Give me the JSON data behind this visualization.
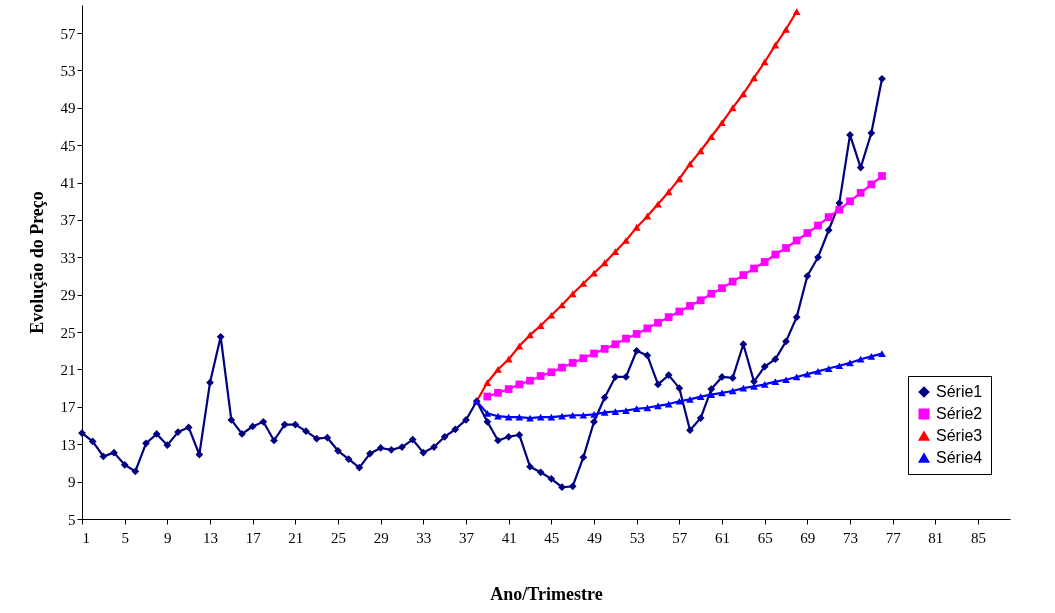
{
  "chart_data": {
    "type": "line",
    "xlabel": "Ano/Trimestre",
    "ylabel": "Evolução do Preço",
    "xlim": [
      1,
      88
    ],
    "xticks": [
      1,
      5,
      9,
      13,
      17,
      21,
      25,
      29,
      33,
      37,
      41,
      45,
      49,
      53,
      57,
      61,
      65,
      69,
      73,
      77,
      81,
      85
    ],
    "ylim": [
      5,
      60
    ],
    "yticks": [
      5,
      9,
      13,
      17,
      21,
      25,
      29,
      33,
      37,
      41,
      45,
      49,
      53,
      57
    ],
    "grid": false,
    "legend": "right",
    "line_style": "solid",
    "series": [
      {
        "name": "Série1",
        "color": "#000080",
        "marker": "diamond",
        "x": [
          1,
          2,
          3,
          4,
          5,
          6,
          7,
          8,
          9,
          10,
          11,
          12,
          13,
          14,
          15,
          16,
          17,
          18,
          19,
          20,
          21,
          22,
          23,
          24,
          25,
          26,
          27,
          28,
          29,
          30,
          31,
          32,
          33,
          34,
          35,
          36,
          37,
          38,
          39,
          40,
          41,
          42,
          43,
          44,
          45,
          46,
          47,
          48,
          49,
          50,
          51,
          52,
          53,
          54,
          55,
          56,
          57,
          58,
          59,
          60,
          61,
          62,
          63,
          64,
          65,
          66,
          67,
          68,
          69,
          70,
          71,
          72,
          73,
          74,
          75,
          76
        ],
        "values": [
          14.2,
          13.3,
          11.7,
          12.1,
          10.8,
          10.1,
          13.1,
          14.1,
          12.9,
          14.3,
          14.8,
          11.9,
          19.6,
          24.5,
          15.6,
          14.1,
          14.9,
          15.4,
          13.4,
          15.1,
          15.1,
          14.4,
          13.6,
          13.7,
          12.3,
          11.4,
          10.5,
          12.0,
          12.6,
          12.4,
          12.7,
          13.5,
          12.1,
          12.7,
          13.8,
          14.6,
          15.6,
          17.6,
          15.4,
          13.4,
          13.8,
          14.0,
          10.6,
          10.0,
          9.3,
          8.4,
          8.5,
          11.6,
          15.4,
          18.0,
          20.2,
          20.2,
          23.0,
          22.5,
          19.4,
          20.4,
          19.0,
          14.5,
          15.8,
          18.9,
          20.2,
          20.1,
          23.7,
          19.7,
          21.3,
          22.1,
          24.0,
          26.6,
          31.0,
          33.0,
          35.9,
          38.8,
          46.1,
          42.6,
          46.3,
          52.1
        ]
      },
      {
        "name": "Série2",
        "color": "#ff00ff",
        "marker": "square",
        "x": [
          39,
          40,
          41,
          42,
          43,
          44,
          45,
          46,
          47,
          48,
          49,
          50,
          51,
          52,
          53,
          54,
          55,
          56,
          57,
          58,
          59,
          60,
          61,
          62,
          63,
          64,
          65,
          66,
          67,
          68,
          69,
          70,
          71,
          72,
          73,
          74,
          75,
          76
        ],
        "values": [
          18.1,
          18.5,
          18.9,
          19.4,
          19.8,
          20.3,
          20.7,
          21.2,
          21.7,
          22.2,
          22.7,
          23.2,
          23.7,
          24.3,
          24.8,
          25.4,
          26.0,
          26.6,
          27.2,
          27.8,
          28.4,
          29.1,
          29.7,
          30.4,
          31.1,
          31.8,
          32.5,
          33.3,
          34.0,
          34.8,
          35.6,
          36.4,
          37.3,
          38.1,
          39.0,
          39.9,
          40.8,
          41.7
        ]
      },
      {
        "name": "Série3",
        "color": "#ff0000",
        "marker": "triangle",
        "x": [
          38,
          39,
          40,
          41,
          42,
          43,
          44,
          45,
          46,
          47,
          48,
          49,
          50,
          51,
          52,
          53,
          54,
          55,
          56,
          57,
          58,
          59,
          60,
          61,
          62,
          63,
          64,
          65,
          66,
          67,
          68
        ],
        "values": [
          17.6,
          19.6,
          21.0,
          22.1,
          23.5,
          24.7,
          25.7,
          26.8,
          27.9,
          29.1,
          30.2,
          31.3,
          32.4,
          33.6,
          34.8,
          36.2,
          37.4,
          38.7,
          40.0,
          41.4,
          43.0,
          44.4,
          45.9,
          47.4,
          49.0,
          50.5,
          52.2,
          53.9,
          55.7,
          57.4,
          59.3
        ]
      },
      {
        "name": "Série4",
        "color": "#0000ff",
        "marker": "triangle",
        "x": [
          38,
          39,
          40,
          41,
          42,
          43,
          44,
          45,
          46,
          47,
          48,
          49,
          50,
          51,
          52,
          53,
          54,
          55,
          56,
          57,
          58,
          59,
          60,
          61,
          62,
          63,
          64,
          65,
          66,
          67,
          68,
          69,
          70,
          71,
          72,
          73,
          74,
          75,
          76
        ],
        "values": [
          17.6,
          16.3,
          16.0,
          15.9,
          15.9,
          15.8,
          15.9,
          15.9,
          16.0,
          16.1,
          16.1,
          16.2,
          16.4,
          16.5,
          16.6,
          16.8,
          16.9,
          17.1,
          17.3,
          17.6,
          17.8,
          18.1,
          18.3,
          18.5,
          18.7,
          19.0,
          19.2,
          19.4,
          19.7,
          19.9,
          20.2,
          20.5,
          20.8,
          21.1,
          21.4,
          21.7,
          22.1,
          22.4,
          22.7
        ]
      }
    ]
  }
}
